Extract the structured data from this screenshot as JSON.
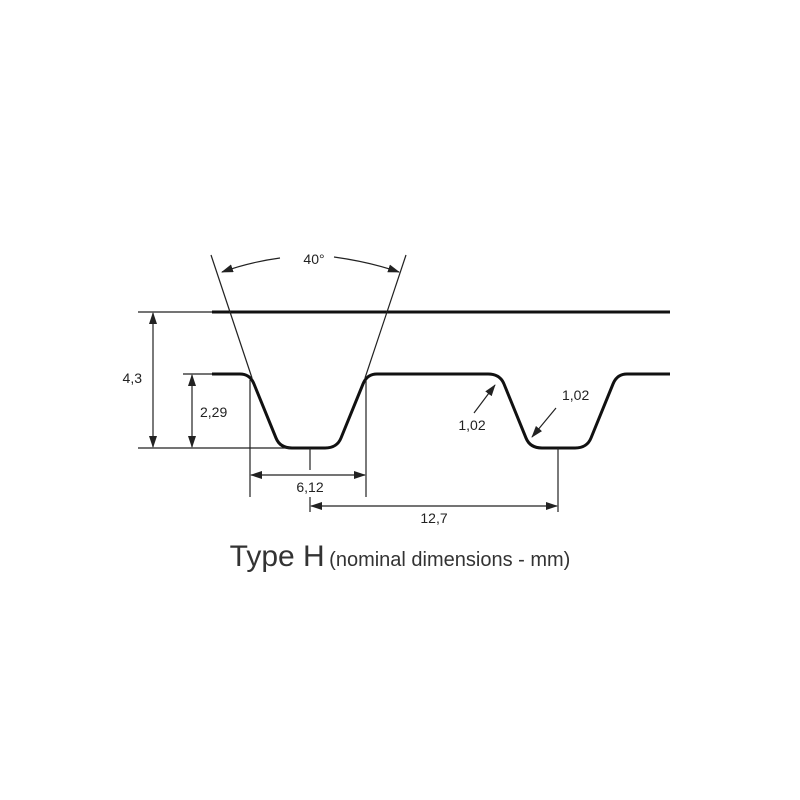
{
  "labels": {
    "angle": "40°",
    "total_height": "4,3",
    "tooth_height": "2,29",
    "tooth_width": "6,12",
    "pitch": "12,7",
    "radius_top": "1,02",
    "radius_bottom": "1,02"
  },
  "caption": {
    "type": "Type H",
    "note": "(nominal dimensions - mm)"
  }
}
